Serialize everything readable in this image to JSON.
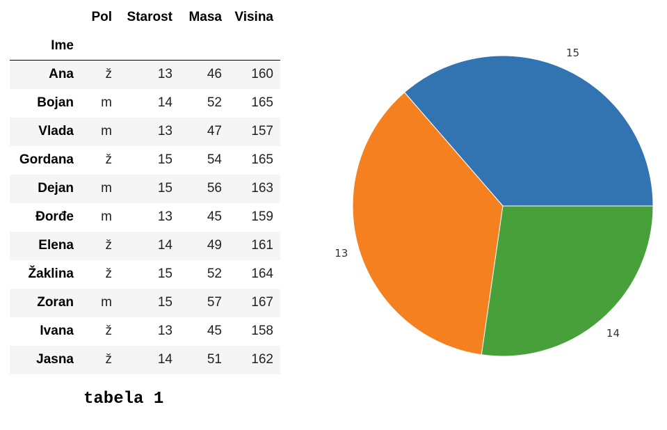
{
  "table": {
    "columns": [
      "Pol",
      "Starost",
      "Masa",
      "Visina"
    ],
    "index_name": "Ime",
    "rows": [
      {
        "name": "Ana",
        "pol": "ž",
        "starost": "13",
        "masa": "46",
        "visina": "160"
      },
      {
        "name": "Bojan",
        "pol": "m",
        "starost": "14",
        "masa": "52",
        "visina": "165"
      },
      {
        "name": "Vlada",
        "pol": "m",
        "starost": "13",
        "masa": "47",
        "visina": "157"
      },
      {
        "name": "Gordana",
        "pol": "ž",
        "starost": "15",
        "masa": "54",
        "visina": "165"
      },
      {
        "name": "Dejan",
        "pol": "m",
        "starost": "15",
        "masa": "56",
        "visina": "163"
      },
      {
        "name": "Đorđe",
        "pol": "m",
        "starost": "13",
        "masa": "45",
        "visina": "159"
      },
      {
        "name": "Elena",
        "pol": "ž",
        "starost": "14",
        "masa": "49",
        "visina": "161"
      },
      {
        "name": "Žaklina",
        "pol": "ž",
        "starost": "15",
        "masa": "52",
        "visina": "164"
      },
      {
        "name": "Zoran",
        "pol": "m",
        "starost": "15",
        "masa": "57",
        "visina": "167"
      },
      {
        "name": "Ivana",
        "pol": "ž",
        "starost": "13",
        "masa": "45",
        "visina": "158"
      },
      {
        "name": "Jasna",
        "pol": "ž",
        "starost": "14",
        "masa": "51",
        "visina": "162"
      }
    ]
  },
  "caption": "tabela 1",
  "chart_data": {
    "type": "pie",
    "labels": [
      "15",
      "13",
      "14"
    ],
    "values": [
      4,
      4,
      3
    ],
    "colors": [
      "#3274b2",
      "#f5801f",
      "#47a03a"
    ],
    "start_angle": 0,
    "direction": "counterclockwise",
    "title": ""
  }
}
